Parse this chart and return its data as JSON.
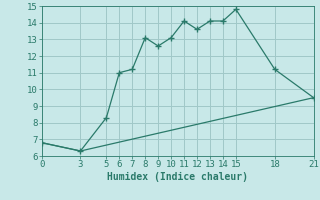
{
  "xlabel": "Humidex (Indice chaleur)",
  "bg_color": "#c8e8e8",
  "grid_color": "#a0c8c8",
  "line_color": "#2a7a6a",
  "line1_x": [
    0,
    3,
    5,
    6,
    7,
    8,
    9,
    10,
    11,
    12,
    13,
    14,
    15,
    18,
    21
  ],
  "line1_y": [
    6.8,
    6.3,
    8.3,
    11.0,
    11.2,
    13.1,
    12.6,
    13.1,
    14.1,
    13.6,
    14.1,
    14.1,
    14.8,
    11.2,
    9.5
  ],
  "line2_x": [
    0,
    3,
    21
  ],
  "line2_y": [
    6.8,
    6.3,
    9.5
  ],
  "xlim": [
    0,
    21
  ],
  "ylim": [
    6,
    15
  ],
  "xticks": [
    0,
    3,
    5,
    6,
    7,
    8,
    9,
    10,
    11,
    12,
    13,
    14,
    15,
    18,
    21
  ],
  "yticks": [
    6,
    7,
    8,
    9,
    10,
    11,
    12,
    13,
    14,
    15
  ],
  "tick_fontsize": 6.5,
  "xlabel_fontsize": 7.0
}
